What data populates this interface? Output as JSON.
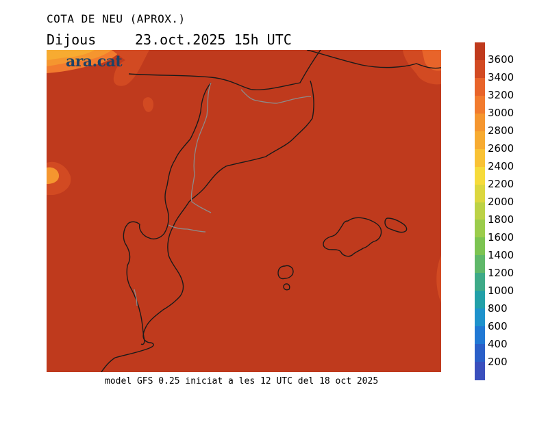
{
  "header": {
    "title": "COTA DE NEU (APROX.)",
    "day": "Dijous",
    "datetime": "23.oct.2025 15h UTC"
  },
  "logo": {
    "text": "ara.cat",
    "color": "#1d4266"
  },
  "footer": {
    "model_text": "model GFS 0.25 iniciat a les 12 UTC del 18 oct 2025"
  },
  "map": {
    "dominant_color": "#bf3a1d",
    "coast_color": "#1a1a1a",
    "border_color": "#8c8c8c"
  },
  "colorbar": {
    "labels": [
      "3600",
      "3400",
      "3200",
      "3000",
      "2800",
      "2600",
      "2400",
      "2200",
      "2000",
      "1800",
      "1600",
      "1400",
      "1200",
      "1000",
      "800",
      "600",
      "400",
      "200"
    ],
    "colors": [
      "#bf3a1d",
      "#d24a22",
      "#e8642a",
      "#f27b2e",
      "#f5962f",
      "#f7ab31",
      "#f9c235",
      "#f6db3b",
      "#dcd73f",
      "#bcd246",
      "#9bcc4c",
      "#7cc452",
      "#5fb86a",
      "#3eaa88",
      "#22a0a8",
      "#1e92cc",
      "#2078d4",
      "#2a5fc8",
      "#3a4fbd"
    ]
  }
}
